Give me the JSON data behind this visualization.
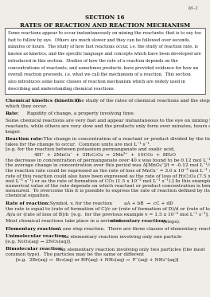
{
  "page_num": "16-1",
  "section_title": "SECTION 16",
  "main_title": "RATES OF REACTION AND REACTION MECHANISM",
  "box_text": "Some reactions appear to occur instantaneously on mixing the reactants; that is to say too fast to follow by eye.  Others are much slower and they can be followed over seconds, minutes or hours.  The study of how fast reactions occur, i.e. the study of reaction rate, is known as kinetics, and the specific language and concepts which have been developed are introduced in this section.  Studies of how the rate of a reaction depends on the concentrations of reactants, and sometimes products, have provided evidence for how an overall reaction proceeds, i.e. what we call the mechanism of a reaction.  This section also introduces some basic classes of reaction mechanism which are widely used in describing and understanding chemical reactions.",
  "chemical_kinetics_bold": "Chemical kinetics (kinetics):",
  "rate_bold": "Rate:",
  "rate_rest": "  Rapidity of change, a property involving time.",
  "para1": "Some chemical reactions are very fast and appear instantaneous to the eye on mixing the reactants, while others are very slow and the products only form over minutes, hours or even longer.",
  "reaction_rate_bold": "Reaction rate:",
  "equation": "4H⁺  +  2MnO₄⁻  +  5H₂C₂O₄  →  2Mn²⁺  +  10CO₂  +  8H₂O",
  "rate_of_rxn_bold": "Rate of reaction:",
  "elementary_rxn_bold": "Elementary reaction:",
  "unimolecular_bold": "Unimolecular reaction:",
  "bimolecular_bold": "Bimolecular reaction:",
  "bg_color": "#f0ede8",
  "text_color": "#1a1a1a",
  "box_bg": "#ffffff",
  "fontsize_title": 5.0,
  "fontsize_body": 4.2
}
